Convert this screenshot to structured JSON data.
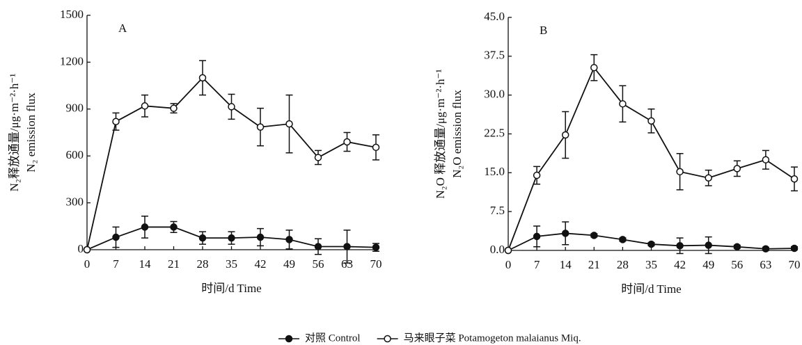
{
  "chart_data": [
    {
      "type": "line",
      "annotation": "A",
      "y_label": "N₂释放通量/μg·m⁻²·h⁻¹",
      "y_label_en": "N₂ emission flux",
      "x_label": "时间/d    Time",
      "x": [
        0,
        7,
        14,
        21,
        28,
        35,
        42,
        49,
        56,
        63,
        70
      ],
      "xlim": [
        0,
        70
      ],
      "xticks": [
        0,
        7,
        14,
        21,
        28,
        35,
        42,
        49,
        56,
        63,
        70
      ],
      "ylim": [
        0,
        1500
      ],
      "yticks": [
        0,
        300,
        600,
        900,
        1200,
        1500
      ],
      "series": [
        {
          "name": "对照 Control",
          "color": "#111111",
          "marker": "filled",
          "values": [
            0,
            80,
            145,
            145,
            75,
            75,
            80,
            65,
            20,
            20,
            15
          ],
          "errors": [
            0,
            65,
            70,
            35,
            40,
            40,
            55,
            60,
            50,
            105,
            25
          ]
        },
        {
          "name": "马来眼子菜 Potamogeton malaianus Miq.",
          "color": "#111111",
          "marker": "open",
          "values": [
            0,
            820,
            920,
            905,
            1100,
            915,
            785,
            805,
            590,
            690,
            655
          ],
          "errors": [
            0,
            55,
            70,
            30,
            110,
            80,
            120,
            185,
            45,
            60,
            80
          ]
        }
      ]
    },
    {
      "type": "line",
      "annotation": "B",
      "y_label": "N₂O 释放通量/μg·m⁻²·h⁻¹",
      "y_label_en": "N₂O  emission flux",
      "x_label": "时间/d    Time",
      "x": [
        0,
        7,
        14,
        21,
        28,
        35,
        42,
        49,
        56,
        63,
        70
      ],
      "xlim": [
        0,
        70
      ],
      "xticks": [
        0,
        7,
        14,
        21,
        28,
        35,
        42,
        49,
        56,
        63,
        70
      ],
      "ylim": [
        0,
        45
      ],
      "yticks": [
        {
          "value": 0,
          "label": "0.0"
        },
        7.5,
        {
          "value": 15,
          "label": "15.0"
        },
        22.5,
        {
          "value": 30,
          "label": "30.0"
        },
        37.5,
        {
          "value": 45,
          "label": "45.0"
        }
      ],
      "series": [
        {
          "name": "对照 Control",
          "color": "#111111",
          "marker": "filled",
          "values": [
            0,
            2.7,
            3.3,
            2.9,
            2.1,
            1.2,
            0.9,
            1.0,
            0.7,
            0.3,
            0.4
          ],
          "errors": [
            0,
            2.0,
            2.2,
            0.3,
            0.3,
            0.3,
            1.5,
            1.6,
            0.3,
            0.3,
            0.3
          ]
        },
        {
          "name": "马来眼子菜 Potamogeton malaianus Miq.",
          "color": "#111111",
          "marker": "open",
          "values": [
            0,
            14.5,
            22.3,
            35.3,
            28.3,
            25.0,
            15.2,
            14.0,
            15.8,
            17.5,
            13.8
          ],
          "errors": [
            0,
            1.7,
            4.5,
            2.5,
            3.5,
            2.3,
            3.5,
            1.5,
            1.5,
            1.8,
            2.3
          ]
        }
      ]
    }
  ]
}
